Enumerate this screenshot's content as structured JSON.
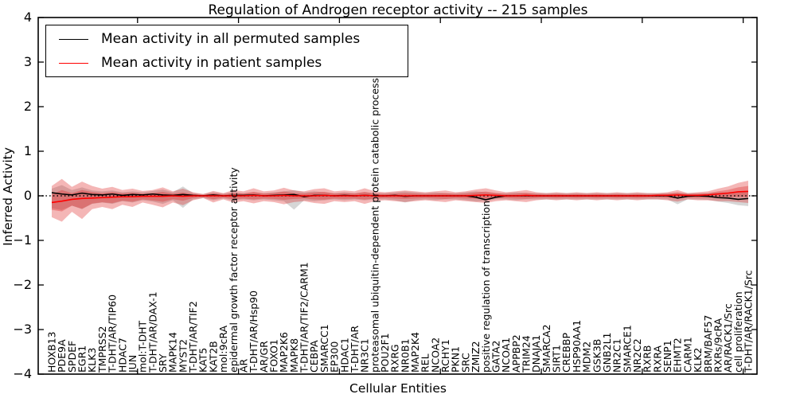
{
  "chart_data": {
    "type": "line",
    "title": "Regulation of Androgen receptor activity -- 215 samples",
    "xlabel": "Cellular Entities",
    "ylabel": "Inferred Activity",
    "ylim": [
      -4,
      4
    ],
    "yticks": [
      4,
      3,
      2,
      1,
      0,
      -1,
      -2,
      -3,
      -4
    ],
    "grid": false,
    "legend_position": "upper left",
    "zero_line": {
      "color": "#000000",
      "style": "dotted"
    },
    "categories": [
      "HOXB13",
      "PDE9A",
      "SPDEF",
      "EGR1",
      "KLK3",
      "TMPRSS2",
      "T-DHT/AR/TIP60",
      "HDAC7",
      "JUN",
      "mol:T-DHT",
      "T-DHT/AR/DAX-1",
      "SRY",
      "MAPK14",
      "MYST2",
      "T-DHT/AR/TIF2",
      "KAT5",
      "KAT2B",
      "mol:9cRA",
      "epidermal growth factor receptor activity",
      "AR",
      "T-DHT/AR/Hsp90",
      "AR/GR",
      "FOXO1",
      "MAP2K6",
      "MAPK8",
      "T-DHT/AR/TIF2/CARM1",
      "CEBPA",
      "SMARCC1",
      "EP300",
      "HDAC1",
      "T-DHT/AR",
      "NR3C1",
      "proteasomal ubiquitin-dependent protein catabolic process",
      "POU2F1",
      "RXRG",
      "NR0B1",
      "MAP2K4",
      "REL",
      "NCOA2",
      "RCHY1",
      "PKN1",
      "SRC",
      "ZMIZ2",
      "positive regulation of transcription",
      "GATA2",
      "NCOA1",
      "APPBP2",
      "TRIM24",
      "DNAJA1",
      "SMARCA2",
      "SIRT1",
      "CREBBP",
      "HSP90AA1",
      "MDM2",
      "GSK3B",
      "GNB2L1",
      "NR2C1",
      "SMARCE1",
      "NR2C2",
      "RXRB",
      "RXRA",
      "SENP1",
      "EHMT2",
      "CARM1",
      "KLK2",
      "BRM/BAF57",
      "RXRs/9cRA",
      "AR/RACK1/Src",
      "cell proliferation",
      "T-DHT/AR/RACK1/Src"
    ],
    "series": [
      {
        "name": "Mean activity in all permuted samples",
        "color": "#000000",
        "band_color": "#999999",
        "band_opacity": 0.4,
        "values": [
          0.07,
          0.04,
          0.02,
          0.06,
          0.03,
          0.02,
          0.04,
          0.01,
          0.03,
          0.02,
          0.04,
          0.02,
          0.01,
          0.03,
          0.01,
          0.0,
          0.02,
          0.0,
          0.01,
          0.01,
          0.02,
          0.0,
          0.01,
          0.02,
          0.03,
          -0.02,
          0.01,
          0.01,
          0.0,
          0.01,
          0.0,
          0.01,
          0.0,
          0.0,
          0.01,
          -0.01,
          0.0,
          0.0,
          0.0,
          0.0,
          0.0,
          0.0,
          -0.03,
          -0.09,
          -0.03,
          0.0,
          0.0,
          0.0,
          0.0,
          0.0,
          0.0,
          0.0,
          0.0,
          0.0,
          0.0,
          0.0,
          0.0,
          0.0,
          0.0,
          0.0,
          0.0,
          0.0,
          -0.05,
          -0.01,
          0.0,
          -0.01,
          -0.04,
          -0.05,
          -0.08,
          -0.06
        ],
        "band_upper": [
          0.16,
          0.24,
          0.13,
          0.19,
          0.12,
          0.1,
          0.12,
          0.08,
          0.1,
          0.08,
          0.11,
          0.14,
          0.08,
          0.21,
          0.06,
          0.04,
          0.08,
          0.05,
          0.08,
          0.06,
          0.08,
          0.06,
          0.08,
          0.1,
          0.13,
          0.08,
          0.1,
          0.08,
          0.06,
          0.08,
          0.06,
          0.08,
          0.06,
          0.06,
          0.08,
          0.1,
          0.08,
          0.06,
          0.08,
          0.06,
          0.06,
          0.08,
          0.1,
          0.08,
          0.06,
          0.06,
          0.08,
          0.06,
          0.06,
          0.06,
          0.06,
          0.06,
          0.06,
          0.06,
          0.06,
          0.06,
          0.06,
          0.06,
          0.06,
          0.06,
          0.06,
          0.06,
          0.07,
          0.06,
          0.06,
          0.06,
          0.08,
          0.08,
          0.1,
          0.09
        ],
        "band_lower": [
          -0.28,
          -0.32,
          -0.22,
          -0.3,
          -0.18,
          -0.15,
          -0.18,
          -0.12,
          -0.15,
          -0.1,
          -0.13,
          -0.18,
          -0.1,
          -0.27,
          -0.08,
          -0.05,
          -0.1,
          -0.06,
          -0.1,
          -0.08,
          -0.1,
          -0.08,
          -0.1,
          -0.12,
          -0.31,
          -0.1,
          -0.12,
          -0.1,
          -0.08,
          -0.1,
          -0.08,
          -0.1,
          -0.08,
          -0.08,
          -0.1,
          -0.15,
          -0.1,
          -0.08,
          -0.1,
          -0.08,
          -0.08,
          -0.1,
          -0.13,
          -0.12,
          -0.08,
          -0.08,
          -0.1,
          -0.08,
          -0.08,
          -0.08,
          -0.08,
          -0.08,
          -0.08,
          -0.08,
          -0.08,
          -0.08,
          -0.08,
          -0.08,
          -0.08,
          -0.08,
          -0.08,
          -0.08,
          -0.19,
          -0.08,
          -0.08,
          -0.09,
          -0.13,
          -0.16,
          -0.21,
          -0.23
        ]
      },
      {
        "name": "Mean activity in patient samples",
        "color": "#ff0000",
        "band_color": "#dd2222",
        "band_opacity": 0.33,
        "values": [
          -0.15,
          -0.12,
          -0.08,
          -0.06,
          -0.05,
          -0.04,
          -0.03,
          -0.02,
          -0.02,
          -0.01,
          -0.01,
          -0.01,
          0.0,
          -0.01,
          0.0,
          0.0,
          0.0,
          0.0,
          0.0,
          0.0,
          0.01,
          0.0,
          0.0,
          0.01,
          0.0,
          0.0,
          0.0,
          0.01,
          0.0,
          0.0,
          0.0,
          0.01,
          0.0,
          0.0,
          0.0,
          0.0,
          0.0,
          0.0,
          0.0,
          0.0,
          0.0,
          0.0,
          0.01,
          0.02,
          0.01,
          0.0,
          0.0,
          0.01,
          0.0,
          0.0,
          0.0,
          0.0,
          0.0,
          0.0,
          0.0,
          0.0,
          0.0,
          0.0,
          0.0,
          0.0,
          0.01,
          0.01,
          0.02,
          0.01,
          0.01,
          0.02,
          0.04,
          0.06,
          0.09,
          0.1
        ],
        "band_upper": [
          0.22,
          0.38,
          0.2,
          0.32,
          0.22,
          0.16,
          0.2,
          0.13,
          0.16,
          0.11,
          0.13,
          0.19,
          0.1,
          0.16,
          0.08,
          0.04,
          0.11,
          0.06,
          0.13,
          0.1,
          0.17,
          0.1,
          0.12,
          0.18,
          0.12,
          0.1,
          0.15,
          0.17,
          0.1,
          0.12,
          0.1,
          0.17,
          0.1,
          0.08,
          0.1,
          0.12,
          0.1,
          0.08,
          0.1,
          0.12,
          0.08,
          0.1,
          0.14,
          0.17,
          0.12,
          0.08,
          0.1,
          0.13,
          0.08,
          0.06,
          0.08,
          0.06,
          0.08,
          0.06,
          0.08,
          0.06,
          0.08,
          0.06,
          0.08,
          0.06,
          0.06,
          0.08,
          0.13,
          0.06,
          0.08,
          0.1,
          0.16,
          0.21,
          0.29,
          0.34
        ],
        "band_lower": [
          -0.48,
          -0.58,
          -0.36,
          -0.52,
          -0.3,
          -0.25,
          -0.3,
          -0.2,
          -0.25,
          -0.15,
          -0.2,
          -0.26,
          -0.15,
          -0.21,
          -0.1,
          -0.05,
          -0.15,
          -0.08,
          -0.15,
          -0.12,
          -0.17,
          -0.12,
          -0.14,
          -0.19,
          -0.14,
          -0.12,
          -0.16,
          -0.18,
          -0.12,
          -0.14,
          -0.12,
          -0.18,
          -0.12,
          -0.1,
          -0.12,
          -0.14,
          -0.12,
          -0.1,
          -0.12,
          -0.14,
          -0.1,
          -0.12,
          -0.14,
          -0.16,
          -0.12,
          -0.1,
          -0.12,
          -0.14,
          -0.1,
          -0.08,
          -0.1,
          -0.08,
          -0.1,
          -0.08,
          -0.1,
          -0.08,
          -0.1,
          -0.08,
          -0.1,
          -0.08,
          -0.08,
          -0.1,
          -0.13,
          -0.08,
          -0.1,
          -0.1,
          -0.12,
          -0.12,
          -0.14,
          -0.16
        ],
        "inner_band": true
      }
    ]
  }
}
